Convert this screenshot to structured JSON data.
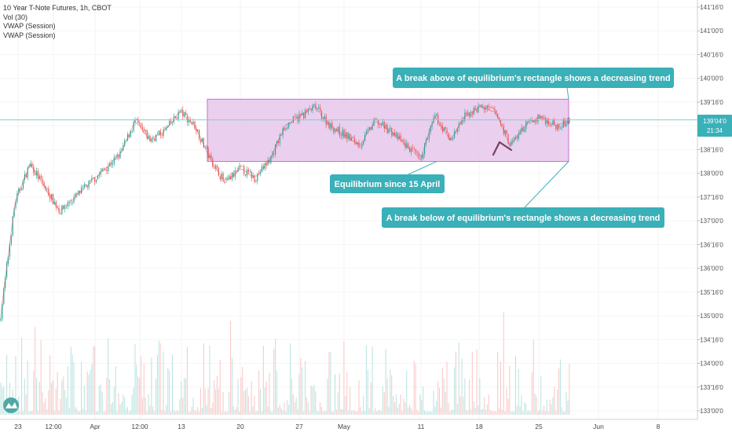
{
  "legend": {
    "title": "10 Year T-Note Futures, 1h, CBOT",
    "indicators": [
      "Vol (30)",
      "VWAP (Session)",
      "VWAP (Session)"
    ]
  },
  "colors": {
    "up": "#26a69a",
    "down": "#ef5350",
    "rectangle_fill": "#e6c7ec",
    "rectangle_stroke": "#c86fd4",
    "callout_bg": "#3ab0b8",
    "current_line": "#7fd0d0",
    "arrow": "#7a3f5c"
  },
  "current_price": {
    "price_label": "139'04'0",
    "timer": "21:34",
    "value": 139.125
  },
  "chart_data": {
    "type": "candlestick",
    "title": "10 Year T-Note Futures, 1h, CBOT",
    "y_axis": {
      "min": 133.0,
      "max": 141.5,
      "tick_labels": [
        "141'16'0",
        "141'00'0",
        "140'16'0",
        "140'00'0",
        "139'16'0",
        "139'00'0",
        "138'16'0",
        "138'00'0",
        "137'16'0",
        "137'00'0",
        "136'16'0",
        "136'00'0",
        "135'16'0",
        "135'00'0",
        "134'16'0",
        "134'00'0",
        "133'16'0",
        "133'00'0"
      ],
      "tick_values": [
        141.5,
        141.0,
        140.5,
        140.0,
        139.5,
        139.0,
        138.5,
        138.0,
        137.5,
        137.0,
        136.5,
        136.0,
        135.5,
        135.0,
        134.5,
        134.0,
        133.5,
        133.0
      ]
    },
    "x_axis": {
      "tick_labels": [
        "23",
        "12:00",
        "Apr",
        "12:00",
        "13",
        "20",
        "27",
        "May",
        "11",
        "18",
        "25",
        "Jun",
        "8"
      ]
    },
    "price_path_anchors": [
      {
        "x": "23",
        "price": 134.9
      },
      {
        "x": "",
        "price": 137.4
      },
      {
        "x": "",
        "price": 138.2
      },
      {
        "x": "",
        "price": 137.7
      },
      {
        "x": "",
        "price": 137.2
      },
      {
        "x": "",
        "price": 137.5
      },
      {
        "x": "",
        "price": 137.8
      },
      {
        "x": "",
        "price": 138.1
      },
      {
        "x": "12:00",
        "price": 138.4
      },
      {
        "x": "",
        "price": 139.1
      },
      {
        "x": "",
        "price": 138.7
      },
      {
        "x": "Apr",
        "price": 138.9
      },
      {
        "x": "",
        "price": 139.3
      },
      {
        "x": "12:00",
        "price": 139.0
      },
      {
        "x": "",
        "price": 138.3
      },
      {
        "x": "",
        "price": 137.8
      },
      {
        "x": "",
        "price": 138.1
      },
      {
        "x": "13",
        "price": 137.9
      },
      {
        "x": "",
        "price": 138.3
      },
      {
        "x": "",
        "price": 139.0
      },
      {
        "x": "20",
        "price": 139.2
      },
      {
        "x": "",
        "price": 139.4
      },
      {
        "x": "",
        "price": 139.0
      },
      {
        "x": "27",
        "price": 138.8
      },
      {
        "x": "",
        "price": 138.6
      },
      {
        "x": "",
        "price": 139.1
      },
      {
        "x": "May",
        "price": 138.9
      },
      {
        "x": "",
        "price": 138.6
      },
      {
        "x": "",
        "price": 138.3
      },
      {
        "x": "11",
        "price": 139.2
      },
      {
        "x": "",
        "price": 138.7
      },
      {
        "x": "",
        "price": 139.2
      },
      {
        "x": "18",
        "price": 139.4
      },
      {
        "x": "",
        "price": 139.3
      },
      {
        "x": "",
        "price": 138.6
      },
      {
        "x": "",
        "price": 139.0
      },
      {
        "x": "25",
        "price": 139.2
      },
      {
        "x": "",
        "price": 139.0
      },
      {
        "x": "",
        "price": 139.1
      }
    ],
    "rectangle": {
      "label": "Equilibrium since 15 April",
      "top_price": 139.56,
      "bottom_price": 138.25
    },
    "annotations": [
      "A break above of equilibrium's rectangle shows a decreasing trend",
      "Equilibrium since 15 April",
      "A break below of equilibrium's rectangle shows a decreasing trend"
    ]
  }
}
